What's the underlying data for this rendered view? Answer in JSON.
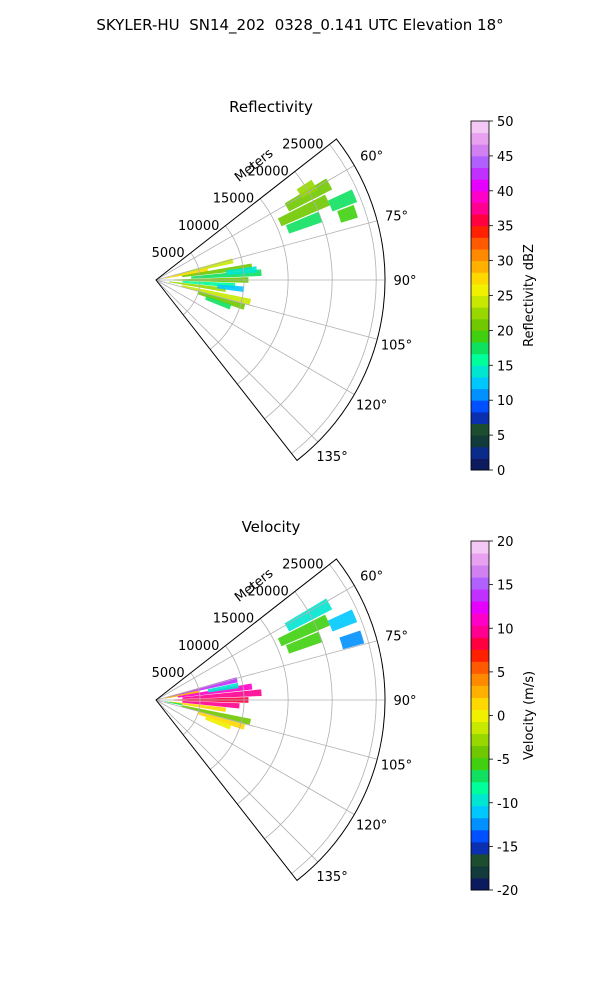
{
  "suptitle": "SKYLER-HU  SN14_202  0328_0.141 UTC Elevation 18°",
  "chart_data": [
    {
      "type": "polar-sector",
      "title": "Reflectivity",
      "radial_label": "Meters",
      "theta_ticks": [
        "60°",
        "75°",
        "90°",
        "105°",
        "120°",
        "135°"
      ],
      "r_ticks": [
        5000,
        10000,
        15000,
        20000,
        25000
      ],
      "colorbar": {
        "label": "Reflectivity dBZ",
        "range": [
          0,
          50
        ],
        "ticks": [
          0,
          5,
          10,
          15,
          20,
          25,
          30,
          35,
          40,
          45,
          50
        ],
        "colors": [
          "#0b1b5e",
          "#0b2b8a",
          "#123a3a",
          "#1b4d2e",
          "#0a2fb0",
          "#0050ff",
          "#0090ff",
          "#00c8ff",
          "#00e6d0",
          "#00ff9a",
          "#10e060",
          "#40d010",
          "#70c800",
          "#98d800",
          "#c8e800",
          "#f0f000",
          "#ffd800",
          "#ffb000",
          "#ff8a00",
          "#ff5a00",
          "#ff2000",
          "#ff0040",
          "#ff0090",
          "#ff00c8",
          "#e600ff",
          "#c030ff",
          "#b060ff",
          "#d080f0",
          "#e8a0f0",
          "#f4c8f4"
        ]
      },
      "data_cells": [
        {
          "az": 61,
          "r0": 17000,
          "r1": 22500,
          "value": 20
        },
        {
          "az": 65,
          "r0": 15500,
          "r1": 21500,
          "value": 21
        },
        {
          "az": 69,
          "r0": 16000,
          "r1": 20000,
          "value": 18
        },
        {
          "az": 67,
          "r0": 21500,
          "r1": 24500,
          "value": 17
        },
        {
          "az": 59,
          "r0": 19000,
          "r1": 21000,
          "value": 22
        },
        {
          "az": 71,
          "r0": 22000,
          "r1": 24000,
          "value": 19
        },
        {
          "az": 76,
          "r0": 2000,
          "r1": 9000,
          "value": 24
        },
        {
          "az": 79,
          "r0": 1000,
          "r1": 6000,
          "value": 27
        },
        {
          "az": 82,
          "r0": 3000,
          "r1": 11000,
          "value": 20
        },
        {
          "az": 86,
          "r0": 4000,
          "r1": 12000,
          "value": 18
        },
        {
          "az": 90,
          "r0": 2000,
          "r1": 10500,
          "value": 21
        },
        {
          "az": 94,
          "r0": 3000,
          "r1": 9000,
          "value": 16
        },
        {
          "az": 98,
          "r0": 1500,
          "r1": 8000,
          "value": 22
        },
        {
          "az": 103,
          "r0": 3000,
          "r1": 11000,
          "value": 24
        },
        {
          "az": 107,
          "r0": 5000,
          "r1": 10500,
          "value": 20
        },
        {
          "az": 110,
          "r0": 6000,
          "r1": 9000,
          "value": 17
        },
        {
          "az": 84,
          "r0": 8000,
          "r1": 11500,
          "value": 14
        },
        {
          "az": 96,
          "r0": 7000,
          "r1": 10000,
          "value": 12
        }
      ]
    },
    {
      "type": "polar-sector",
      "title": "Velocity",
      "radial_label": "Meters",
      "theta_ticks": [
        "60°",
        "75°",
        "90°",
        "105°",
        "120°",
        "135°"
      ],
      "r_ticks": [
        5000,
        10000,
        15000,
        20000,
        25000
      ],
      "colorbar": {
        "label": "Velocity (m/s)",
        "range": [
          -20,
          20
        ],
        "ticks": [
          -20,
          -15,
          -10,
          -5,
          0,
          5,
          10,
          15,
          20
        ],
        "colors": [
          "#0b1b5e",
          "#123a3a",
          "#1b4d2e",
          "#0a2fb0",
          "#0050ff",
          "#0090ff",
          "#00c8ff",
          "#00e6d0",
          "#00ff9a",
          "#10e060",
          "#40d010",
          "#70c800",
          "#98d800",
          "#c8e800",
          "#f0f000",
          "#ffd800",
          "#ffb000",
          "#ff8a00",
          "#ff5a00",
          "#ff2000",
          "#ff0040",
          "#ff0090",
          "#ff00c8",
          "#e600ff",
          "#c030ff",
          "#b060ff",
          "#d080f0",
          "#e8a0f0",
          "#f4c8f4"
        ]
      },
      "data_cells": [
        {
          "az": 61,
          "r0": 17000,
          "r1": 22500,
          "value": -10
        },
        {
          "az": 65,
          "r0": 15500,
          "r1": 21500,
          "value": -6
        },
        {
          "az": 69,
          "r0": 16000,
          "r1": 20000,
          "value": -5
        },
        {
          "az": 67,
          "r0": 21500,
          "r1": 24500,
          "value": -11
        },
        {
          "az": 73,
          "r0": 22000,
          "r1": 24500,
          "value": -13
        },
        {
          "az": 76,
          "r0": 1500,
          "r1": 9500,
          "value": 14
        },
        {
          "az": 79,
          "r0": 1000,
          "r1": 5000,
          "value": 3
        },
        {
          "az": 82,
          "r0": 2500,
          "r1": 11000,
          "value": 11
        },
        {
          "az": 86,
          "r0": 3000,
          "r1": 12000,
          "value": 9
        },
        {
          "az": 90,
          "r0": 2000,
          "r1": 10500,
          "value": 8
        },
        {
          "az": 94,
          "r0": 3000,
          "r1": 9500,
          "value": 10
        },
        {
          "az": 98,
          "r0": 1500,
          "r1": 8000,
          "value": 2
        },
        {
          "az": 103,
          "r0": 3000,
          "r1": 11000,
          "value": -4
        },
        {
          "az": 107,
          "r0": 5000,
          "r1": 10500,
          "value": 1
        },
        {
          "az": 110,
          "r0": 6000,
          "r1": 9000,
          "value": 0
        },
        {
          "az": 80,
          "r0": 6000,
          "r1": 9500,
          "value": -9
        },
        {
          "az": 100,
          "r0": 1000,
          "r1": 3000,
          "value": -7
        }
      ]
    }
  ]
}
